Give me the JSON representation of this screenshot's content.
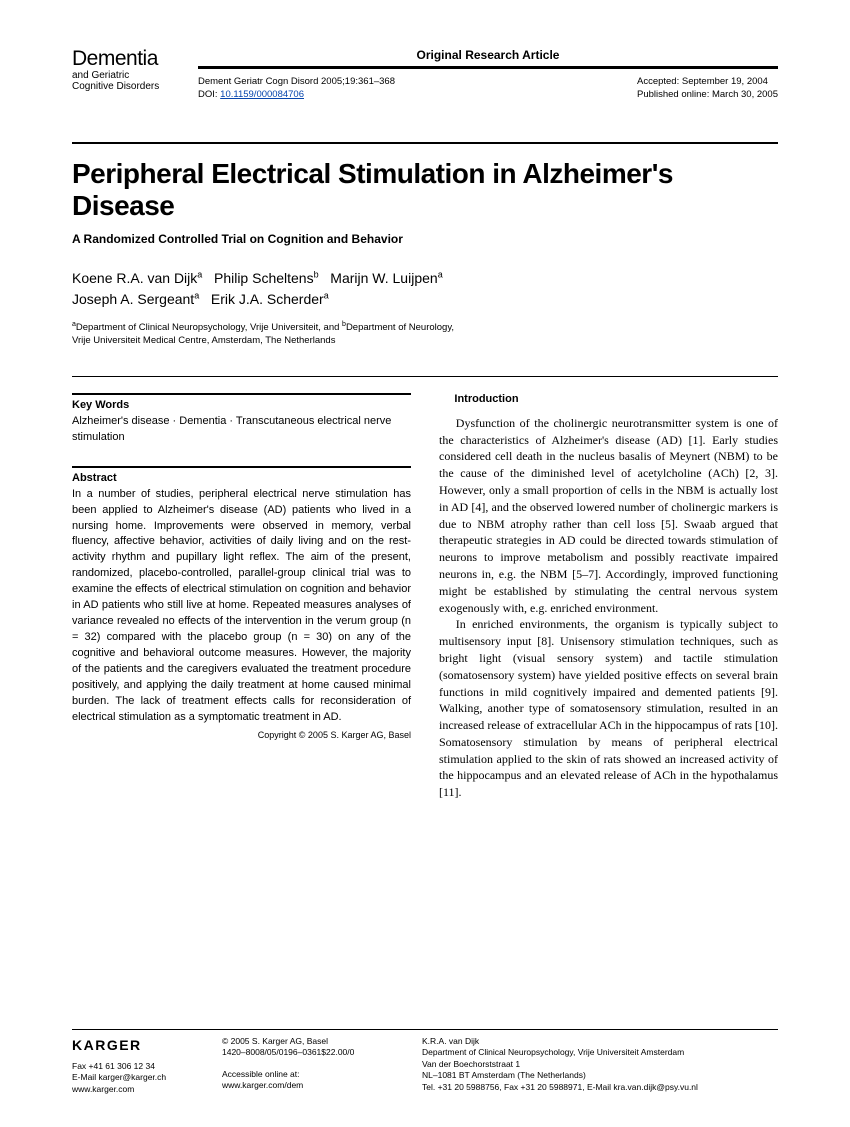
{
  "journal": {
    "name_main": "Dementia",
    "name_sub": "and Geriatric\nCognitive Disorders"
  },
  "header": {
    "article_type": "Original Research Article",
    "citation": "Dement Geriatr Cogn Disord 2005;19:361–368",
    "doi_label": "DOI: ",
    "doi": "10.1159/000084706",
    "accepted": "Accepted: September 19, 2004",
    "published": "Published online: March 30, 2005"
  },
  "title": "Peripheral Electrical Stimulation in Alzheimer's Disease",
  "subtitle": "A Randomized Controlled Trial on Cognition and Behavior",
  "authors_html": "Koene R.A. van Dijk<sup>a</sup>&nbsp;&nbsp;&nbsp;Philip Scheltens<sup>b</sup>&nbsp;&nbsp;&nbsp;Marijn W. Luijpen<sup>a</sup><br>Joseph A. Sergeant<sup>a</sup>&nbsp;&nbsp;&nbsp;Erik J.A. Scherder<sup>a</sup>",
  "affiliations_html": "<sup>a</sup>Department of Clinical Neuropsychology, Vrije Universiteit, and <sup>b</sup>Department of Neurology,<br>Vrije Universiteit Medical Centre, Amsterdam, The Netherlands",
  "keywords": {
    "head": "Key Words",
    "text": "Alzheimer's disease · Dementia · Transcutaneous electrical nerve stimulation"
  },
  "abstract": {
    "head": "Abstract",
    "text": "In a number of studies, peripheral electrical nerve stimulation has been applied to Alzheimer's disease (AD) patients who lived in a nursing home. Improvements were observed in memory, verbal fluency, affective behavior, activities of daily living and on the rest-activity rhythm and pupillary light reflex. The aim of the present, randomized, placebo-controlled, parallel-group clinical trial was to examine the effects of electrical stimulation on cognition and behavior in AD patients who still live at home. Repeated measures analyses of variance revealed no effects of the intervention in the verum group (n = 32) compared with the placebo group (n = 30) on any of the cognitive and behavioral outcome measures. However, the majority of the patients and the caregivers evaluated the treatment procedure positively, and applying the daily treatment at home caused minimal burden. The lack of treatment effects calls for reconsideration of electrical stimulation as a symptomatic treatment in AD.",
    "copyright": "Copyright © 2005 S. Karger AG, Basel"
  },
  "intro": {
    "head": "Introduction",
    "p1": "Dysfunction of the cholinergic neurotransmitter system is one of the characteristics of Alzheimer's disease (AD) [1]. Early studies considered cell death in the nucleus basalis of Meynert (NBM) to be the cause of the diminished level of acetylcholine (ACh) [2, 3]. However, only a small proportion of cells in the NBM is actually lost in AD [4], and the observed lowered number of cholinergic markers is due to NBM atrophy rather than cell loss [5]. Swaab argued that therapeutic strategies in AD could be directed towards stimulation of neurons to improve metabolism and possibly reactivate impaired neurons in, e.g. the NBM [5–7]. Accordingly, improved functioning might be established by stimulating the central nervous system exogenously with, e.g. enriched environment.",
    "p2": "In enriched environments, the organism is typically subject to multisensory input [8]. Unisensory stimulation techniques, such as bright light (visual sensory system) and tactile stimulation (somatosensory system) have yielded positive effects on several brain functions in mild cognitively impaired and demented patients [9]. Walking, another type of somatosensory stimulation, resulted in an increased release of extracellular ACh in the hippocampus of rats [10]. Somatosensory stimulation by means of peripheral electrical stimulation applied to the skin of rats showed an increased activity of the hippocampus and an elevated release of ACh in the hypothalamus [11]."
  },
  "footer": {
    "publisher": "KARGER",
    "fax": "Fax +41 61 306 12 34",
    "email": "E-Mail karger@karger.ch",
    "web": "www.karger.com",
    "copyright": "© 2005 S. Karger AG, Basel",
    "issn": "1420–8008/05/0196–0361$22.00/0",
    "access": "Accessible online at:",
    "access_url": "www.karger.com/dem",
    "corr1": "K.R.A. van Dijk",
    "corr2": "Department of Clinical Neuropsychology, Vrije Universiteit Amsterdam",
    "corr3": "Van der Boechorststraat 1",
    "corr4": "NL–1081 BT Amsterdam (The Netherlands)",
    "corr5": "Tel. +31 20 5988756, Fax +31 20 5988971, E-Mail kra.van.dijk@psy.vu.nl"
  }
}
